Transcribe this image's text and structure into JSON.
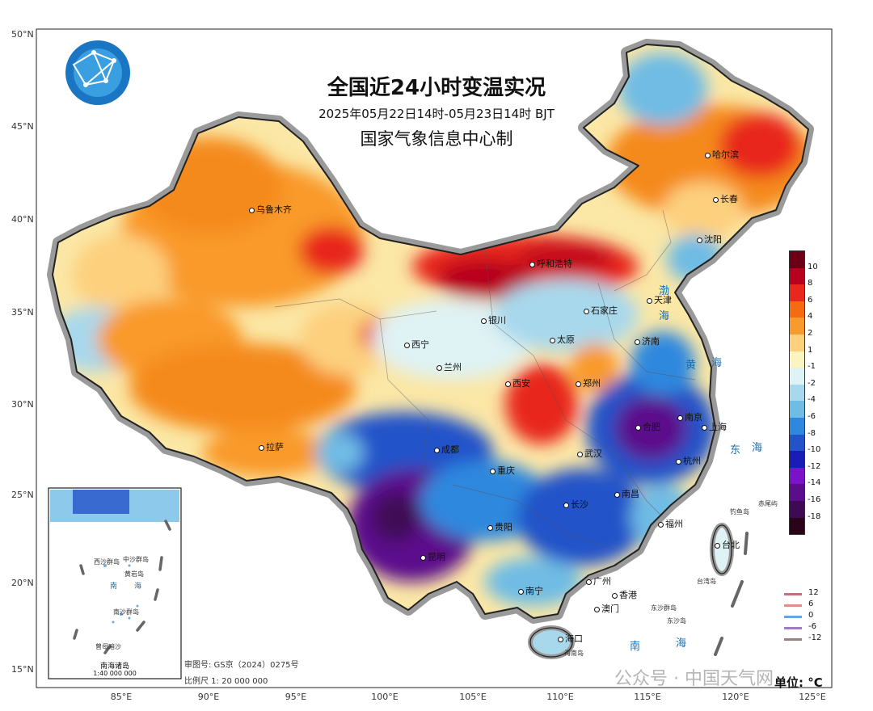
{
  "map": {
    "title": "全国近24小时变温实况",
    "subtitle": "2025年05月22日14时-05月23日14时  BJT",
    "producer": "国家气象信息中心制",
    "unit_label": "单位: °C",
    "approval_number": "审图号: GS京（2024）0275号",
    "scale_text": "比例尺  1: 20 000 000",
    "inset_title": "南海诸岛",
    "inset_scale": "1:40 000 000",
    "watermark": "公众号 · 中国天气网",
    "logo": "globe-network-logo"
  },
  "latitude_labels": [
    "50°N",
    "45°N",
    "40°N",
    "35°N",
    "30°N",
    "25°N",
    "20°N",
    "15°N"
  ],
  "longitude_labels": [
    "85°E",
    "90°E",
    "95°E",
    "100°E",
    "105°E",
    "110°E",
    "115°E",
    "120°E",
    "125°E"
  ],
  "cities": [
    "乌鲁木齐",
    "哈尔滨",
    "长春",
    "沈阳",
    "呼和浩特",
    "天津",
    "石家庄",
    "银川",
    "太原",
    "济南",
    "西宁",
    "兰州",
    "西安",
    "郑州",
    "上海",
    "南京",
    "合肥",
    "杭州",
    "拉萨",
    "成都",
    "重庆",
    "武汉",
    "南昌",
    "长沙",
    "福州",
    "贵阳",
    "昆明",
    "台北",
    "南宁",
    "广州",
    "香港",
    "澳门",
    "海口"
  ],
  "seas": [
    "渤",
    "海",
    "黄",
    "海",
    "东",
    "海",
    "南",
    "海"
  ],
  "islands": [
    "钓鱼岛",
    "赤尾屿",
    "台湾岛",
    "东沙群岛",
    "东沙岛",
    "海南岛"
  ],
  "inset_labels": [
    "南",
    "海",
    "西沙群岛",
    "中沙群岛",
    "黄岩岛",
    "南沙群岛",
    "曾母暗沙"
  ],
  "colorbar": {
    "labels": [
      "10",
      "8",
      "6",
      "4",
      "2",
      "1",
      "-1",
      "-2",
      "-4",
      "-6",
      "-8",
      "-10",
      "-12",
      "-14",
      "-16",
      "-18"
    ],
    "colors": [
      "#6b0016",
      "#b8001f",
      "#e8281c",
      "#f56b12",
      "#f99a2c",
      "#fdd07e",
      "#fbf3c0",
      "#dff2f4",
      "#a8d8ec",
      "#6fbce5",
      "#2f88de",
      "#2452c9",
      "#1a1cb8",
      "#7a12c8",
      "#5c0d8c",
      "#3f0a55",
      "#2a0418"
    ]
  },
  "contour_legend": [
    {
      "value": "12",
      "color": "#c0727d"
    },
    {
      "value": "6",
      "color": "#e48d8d"
    },
    {
      "value": "0",
      "color": "#6aa2e8"
    },
    {
      "value": "-6",
      "color": "#a278c8"
    },
    {
      "value": "-12",
      "color": "#9a8080"
    }
  ]
}
